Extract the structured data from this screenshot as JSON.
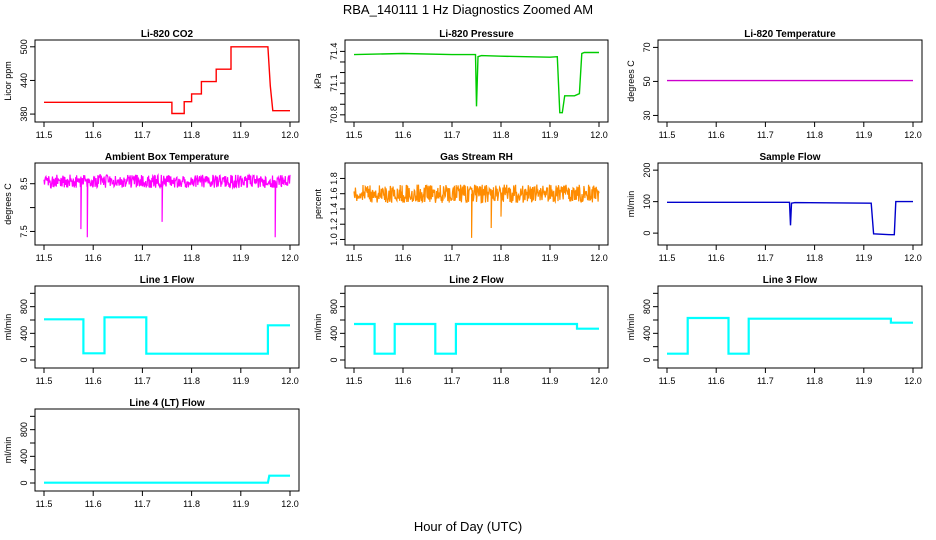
{
  "title": "RBA_140111  1 Hz Diagnostics Zoomed AM",
  "xlabel": "Hour of Day (UTC)",
  "chart_data": [
    {
      "type": "line",
      "title": "Li-820 CO2",
      "ylabel": "Licor ppm",
      "xlim": [
        11.5,
        12.0
      ],
      "ylim": [
        373,
        505
      ],
      "xticks": [
        "11.5",
        "11.6",
        "11.7",
        "11.8",
        "11.9",
        "12.0"
      ],
      "yticks": [
        "380",
        "440",
        "500"
      ],
      "ytick_values": [
        380,
        440,
        500
      ],
      "color": "#ff0000",
      "series": [
        {
          "x": [
            11.5,
            11.76,
            11.76,
            11.785,
            11.785,
            11.8,
            11.8,
            11.82,
            11.82,
            11.85,
            11.85,
            11.88,
            11.88,
            11.955,
            11.96,
            11.965,
            12.0
          ],
          "values": [
            401,
            401,
            381,
            381,
            402,
            402,
            416,
            416,
            438,
            438,
            460,
            460,
            500,
            500,
            430,
            386,
            386
          ]
        }
      ]
    },
    {
      "type": "line",
      "title": "Li-820 Pressure",
      "ylabel": "kPa",
      "xlim": [
        11.5,
        12.0
      ],
      "ylim": [
        70.77,
        71.47
      ],
      "xticks": [
        "11.5",
        "11.6",
        "11.7",
        "11.8",
        "11.9",
        "12.0"
      ],
      "yticks": [
        "70.8",
        "71.1",
        "71.4"
      ],
      "ytick_values": [
        70.8,
        71.1,
        71.4
      ],
      "minor_ytick_values": [
        70.9,
        71.0,
        71.2,
        71.3
      ],
      "color": "#00cc00",
      "series": [
        {
          "x": [
            11.5,
            11.6,
            11.7,
            11.748,
            11.75,
            11.753,
            11.76,
            11.8,
            11.85,
            11.9,
            11.915,
            11.92,
            11.925,
            11.93,
            11.95,
            11.96,
            11.965,
            11.97,
            12.0
          ],
          "values": [
            71.37,
            71.38,
            71.37,
            71.37,
            70.88,
            71.35,
            71.36,
            71.355,
            71.35,
            71.345,
            71.35,
            70.82,
            70.82,
            70.98,
            70.98,
            71.0,
            71.38,
            71.39,
            71.39
          ]
        }
      ]
    },
    {
      "type": "line",
      "title": "Li-820 Temperature",
      "ylabel": "degrees C",
      "xlim": [
        11.5,
        12.0
      ],
      "ylim": [
        28.5,
        72
      ],
      "xticks": [
        "11.5",
        "11.6",
        "11.7",
        "11.8",
        "11.9",
        "12.0"
      ],
      "yticks": [
        "30",
        "50",
        "70"
      ],
      "ytick_values": [
        30,
        50,
        70
      ],
      "color": "#cc00cc",
      "series": [
        {
          "x": [
            11.5,
            12.0
          ],
          "values": [
            50.5,
            50.5
          ]
        }
      ]
    },
    {
      "type": "line",
      "title": "Ambient Box Temperature",
      "ylabel": "degrees C",
      "xlim": [
        11.5,
        12.0
      ],
      "ylim": [
        7.3,
        8.85
      ],
      "xticks": [
        "11.5",
        "11.6",
        "11.7",
        "11.8",
        "11.9",
        "12.0"
      ],
      "yticks": [
        "7.5",
        "8.5"
      ],
      "ytick_values": [
        7.5,
        8.5
      ],
      "minor_ytick_values": [
        8.0
      ],
      "color": "#ff00ff",
      "noise": {
        "center": 8.55,
        "amplitude": 0.14
      },
      "series": [
        {
          "x": [
            11.5,
            11.575,
            11.588,
            11.74,
            11.97,
            12.0
          ],
          "values": [
            8.55,
            7.55,
            7.38,
            7.7,
            7.38,
            8.55
          ]
        }
      ]
    },
    {
      "type": "line",
      "title": "Gas Stream RH",
      "ylabel": "percent",
      "xlim": [
        11.5,
        12.0
      ],
      "ylim": [
        0.98,
        1.95
      ],
      "xticks": [
        "11.5",
        "11.6",
        "11.7",
        "11.8",
        "11.9",
        "12.0"
      ],
      "yticks": [
        "1.0",
        "1.2",
        "1.4",
        "1.6",
        "1.8"
      ],
      "ytick_values": [
        1.0,
        1.2,
        1.4,
        1.6,
        1.8
      ],
      "color": "#ff8c00",
      "noise": {
        "center": 1.6,
        "amplitude": 0.12
      },
      "series": [
        {
          "x": [
            11.5,
            11.74,
            11.78,
            11.8,
            12.0
          ],
          "values": [
            1.6,
            1.02,
            1.15,
            1.3,
            1.6
          ]
        }
      ]
    },
    {
      "type": "line",
      "title": "Sample Flow",
      "ylabel": "ml/min",
      "xlim": [
        11.5,
        12.0
      ],
      "ylim": [
        -25,
        210
      ],
      "xticks": [
        "11.5",
        "11.6",
        "11.7",
        "11.8",
        "11.9",
        "12.0"
      ],
      "yticks": [
        "0",
        "100",
        "200"
      ],
      "ytick_values": [
        0,
        100,
        200
      ],
      "color": "#0000cc",
      "series": [
        {
          "x": [
            11.5,
            11.749,
            11.751,
            11.753,
            11.76,
            11.915,
            11.92,
            11.955,
            11.962,
            11.965,
            12.0
          ],
          "values": [
            98,
            98,
            25,
            95,
            97,
            95,
            -2,
            -5,
            -5,
            100,
            100
          ]
        }
      ]
    },
    {
      "type": "line",
      "title": "Line 1 Flow",
      "ylabel": "ml/min",
      "xlim": [
        11.5,
        12.0
      ],
      "ylim": [
        -60,
        1050
      ],
      "xticks": [
        "11.5",
        "11.6",
        "11.7",
        "11.8",
        "11.9",
        "12.0"
      ],
      "yticks": [
        "0",
        "400",
        "800"
      ],
      "ytick_values": [
        0,
        400,
        800
      ],
      "minor_ytick_values": [
        200,
        600,
        1000
      ],
      "color": "#00ffff",
      "series": [
        {
          "x": [
            11.5,
            11.58,
            11.58,
            11.623,
            11.623,
            11.708,
            11.708,
            11.955,
            11.955,
            12.0
          ],
          "values": [
            610,
            610,
            100,
            100,
            640,
            640,
            95,
            95,
            520,
            520
          ]
        }
      ]
    },
    {
      "type": "line",
      "title": "Line 2 Flow",
      "ylabel": "ml/min",
      "xlim": [
        11.5,
        12.0
      ],
      "ylim": [
        -60,
        1050
      ],
      "xticks": [
        "11.5",
        "11.6",
        "11.7",
        "11.8",
        "11.9",
        "12.0"
      ],
      "yticks": [
        "0",
        "400",
        "800"
      ],
      "ytick_values": [
        0,
        400,
        800
      ],
      "minor_ytick_values": [
        200,
        600,
        1000
      ],
      "color": "#00ffff",
      "series": [
        {
          "x": [
            11.5,
            11.542,
            11.542,
            11.583,
            11.583,
            11.666,
            11.666,
            11.708,
            11.708,
            11.955,
            11.955,
            12.0
          ],
          "values": [
            540,
            540,
            95,
            95,
            540,
            540,
            95,
            95,
            540,
            540,
            470,
            470
          ]
        }
      ]
    },
    {
      "type": "line",
      "title": "Line 3 Flow",
      "ylabel": "ml/min",
      "xlim": [
        11.5,
        12.0
      ],
      "ylim": [
        -60,
        1050
      ],
      "xticks": [
        "11.5",
        "11.6",
        "11.7",
        "11.8",
        "11.9",
        "12.0"
      ],
      "yticks": [
        "0",
        "400",
        "800"
      ],
      "ytick_values": [
        0,
        400,
        800
      ],
      "minor_ytick_values": [
        200,
        600,
        1000
      ],
      "color": "#00ffff",
      "series": [
        {
          "x": [
            11.5,
            11.542,
            11.542,
            11.625,
            11.625,
            11.666,
            11.666,
            11.955,
            11.955,
            12.0
          ],
          "values": [
            95,
            95,
            630,
            630,
            95,
            95,
            620,
            620,
            560,
            560
          ]
        }
      ]
    },
    {
      "type": "line",
      "title": "Line 4 (LT) Flow",
      "ylabel": "ml/min",
      "xlim": [
        11.5,
        12.0
      ],
      "ylim": [
        -60,
        1050
      ],
      "xticks": [
        "11.5",
        "11.6",
        "11.7",
        "11.8",
        "11.9",
        "12.0"
      ],
      "yticks": [
        "0",
        "400",
        "800"
      ],
      "ytick_values": [
        0,
        400,
        800
      ],
      "minor_ytick_values": [
        200,
        600,
        1000
      ],
      "color": "#00ffff",
      "series": [
        {
          "x": [
            11.5,
            11.955,
            11.958,
            12.0
          ],
          "values": [
            5,
            5,
            110,
            110
          ]
        }
      ]
    }
  ]
}
